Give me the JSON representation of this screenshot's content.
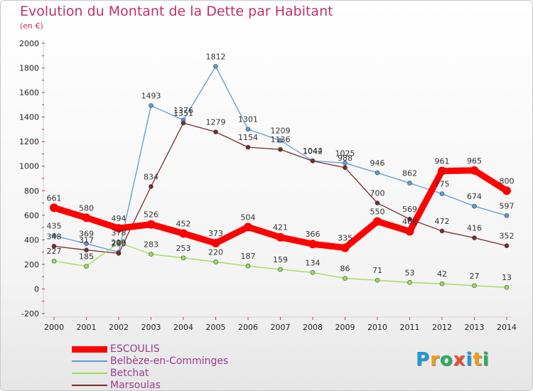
{
  "title": "Evolution du Montant de la Dette par Habitant",
  "subtitle": "(en €)",
  "chart_data": {
    "type": "line",
    "x": [
      "2000",
      "2001",
      "2002",
      "2003",
      "2004",
      "2005",
      "2006",
      "2007",
      "2008",
      "2009",
      "2010",
      "2011",
      "2012",
      "2013",
      "2014"
    ],
    "ylim": [
      -200,
      2000
    ],
    "yticks": [
      "-200",
      "0",
      "200",
      "400",
      "600",
      "800",
      "1000",
      "1200",
      "1400",
      "1600",
      "1800",
      "2000"
    ],
    "grid": false,
    "legend_position": "bottom-left",
    "series": [
      {
        "name": "ESCOULIS",
        "color": "#ff0000",
        "values": [
          661,
          580,
          494,
          526,
          452,
          373,
          504,
          421,
          366,
          335,
          550,
          469,
          961,
          965,
          800
        ]
      },
      {
        "name": "Belbèze-en-Comminges",
        "color": "#5b9bd5",
        "values": [
          435,
          369,
          299,
          1493,
          1376,
          1812,
          1301,
          1209,
          1044,
          1025,
          946,
          862,
          775,
          674,
          597
        ]
      },
      {
        "name": "Betchat",
        "color": "#99dd55",
        "values": [
          227,
          185,
          378,
          283,
          253,
          220,
          187,
          159,
          134,
          86,
          71,
          53,
          42,
          27,
          13
        ]
      },
      {
        "name": "Marsoulas",
        "color": "#7a2a2a",
        "values": [
          348,
          317,
          290,
          834,
          1351,
          1279,
          1154,
          1136,
          1042,
          988,
          700,
          569,
          472,
          416,
          352
        ]
      }
    ]
  },
  "logo": {
    "letters": [
      "P",
      "r",
      "o",
      "x",
      "i",
      "t",
      "i"
    ],
    "colors": [
      "#1a9bd7",
      "#f39c12",
      "#27ae60",
      "#e74c3c",
      "#1a9bd7",
      "#f39c12",
      "#27ae60"
    ]
  }
}
